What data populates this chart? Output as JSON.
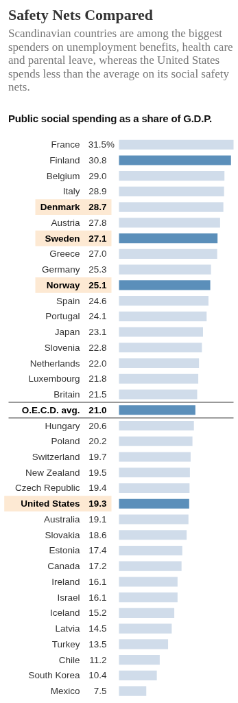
{
  "chart_data": {
    "type": "bar",
    "orientation": "horizontal",
    "title": "Safety Nets Compared",
    "subtitle": "Scandinavian countries are among the biggest spenders on unemployment benefits, health care and parental leave, whereas the United States spends less than the average on its social safety nets.",
    "xlabel": "Public social spending as a share of G.D.P.",
    "categories": [
      "France",
      "Finland",
      "Belgium",
      "Italy",
      "Denmark",
      "Austria",
      "Sweden",
      "Greece",
      "Germany",
      "Norway",
      "Spain",
      "Portugal",
      "Japan",
      "Slovenia",
      "Netherlands",
      "Luxembourg",
      "Britain",
      "O.E.C.D. avg.",
      "Hungary",
      "Poland",
      "Switzerland",
      "New Zealand",
      "Czech Republic",
      "United States",
      "Australia",
      "Slovakia",
      "Estonia",
      "Canada",
      "Ireland",
      "Israel",
      "Iceland",
      "Latvia",
      "Turkey",
      "Chile",
      "South Korea",
      "Mexico"
    ],
    "values": [
      31.5,
      30.8,
      29.0,
      28.9,
      28.7,
      27.8,
      27.1,
      27.0,
      25.3,
      25.1,
      24.6,
      24.1,
      23.1,
      22.8,
      22.0,
      21.8,
      21.5,
      21.0,
      20.6,
      20.2,
      19.7,
      19.5,
      19.4,
      19.3,
      19.1,
      18.6,
      17.4,
      17.2,
      16.1,
      16.1,
      15.2,
      14.5,
      13.5,
      11.2,
      10.4,
      7.5
    ],
    "value_labels": [
      "31.5%",
      "30.8",
      "29.0",
      "28.9",
      "28.7",
      "27.8",
      "27.1",
      "27.0",
      "25.3",
      "25.1",
      "24.6",
      "24.1",
      "23.1",
      "22.8",
      "22.0",
      "21.8",
      "21.5",
      "21.0",
      "20.6",
      "20.2",
      "19.7",
      "19.5",
      "19.4",
      "19.3",
      "19.1",
      "18.6",
      "17.4",
      "17.2",
      "16.1",
      "16.1",
      "15.2",
      "14.5",
      "13.5",
      "11.2",
      "10.4",
      "7.5"
    ],
    "colors": [
      "#d0dcea",
      "#5b8fba",
      "#d0dcea",
      "#d0dcea",
      "#d0dcea",
      "#d0dcea",
      "#5b8fba",
      "#d0dcea",
      "#d0dcea",
      "#5b8fba",
      "#d0dcea",
      "#d0dcea",
      "#d0dcea",
      "#d0dcea",
      "#d0dcea",
      "#d0dcea",
      "#d0dcea",
      "#5b8fba",
      "#d0dcea",
      "#d0dcea",
      "#d0dcea",
      "#d0dcea",
      "#d0dcea",
      "#5b8fba",
      "#d0dcea",
      "#d0dcea",
      "#d0dcea",
      "#d0dcea",
      "#d0dcea",
      "#d0dcea",
      "#d0dcea",
      "#d0dcea",
      "#d0dcea",
      "#d0dcea",
      "#d0dcea",
      "#d0dcea"
    ]
  }
}
